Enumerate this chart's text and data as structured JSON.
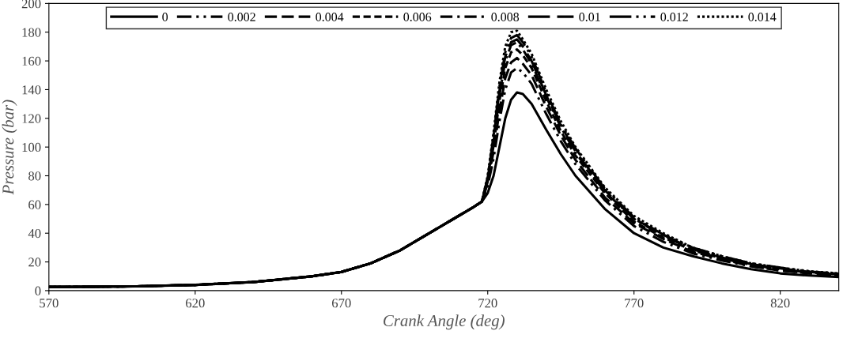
{
  "chart_data": {
    "type": "line",
    "xlabel": "Crank Angle (deg)",
    "ylabel": "Pressure (bar)",
    "x": [
      570,
      600,
      620,
      640,
      660,
      670,
      680,
      690,
      700,
      710,
      715,
      718,
      720,
      722,
      724,
      726,
      728,
      730,
      732,
      735,
      740,
      745,
      750,
      760,
      770,
      780,
      790,
      800,
      810,
      820,
      830,
      840
    ],
    "xlim": [
      570,
      840
    ],
    "xticks": [
      570,
      620,
      670,
      720,
      770,
      820
    ],
    "ylim": [
      0,
      200
    ],
    "yticks": [
      0,
      20,
      40,
      60,
      80,
      100,
      120,
      140,
      160,
      180,
      200
    ],
    "grid": false,
    "legend": "top",
    "marker": "none",
    "series": [
      {
        "name": "0",
        "color": "#000000",
        "line_style": "solid",
        "values": [
          2.5,
          3,
          4,
          6,
          10,
          13,
          19,
          28,
          40,
          52,
          58,
          62,
          68,
          80,
          100,
          120,
          133,
          138,
          137,
          130,
          112,
          95,
          80,
          57,
          40,
          30,
          24,
          19,
          15,
          12,
          10.5,
          9.5
        ]
      },
      {
        "name": "0.002",
        "color": "#000000",
        "line_style": "dashdotdot",
        "values": [
          2.5,
          3,
          4,
          6,
          10,
          13,
          19,
          28,
          40,
          52,
          58,
          62,
          73,
          92,
          118,
          140,
          152,
          155,
          152,
          144,
          123,
          104,
          88,
          63,
          45,
          34,
          26,
          21,
          17,
          14,
          12,
          10.5
        ]
      },
      {
        "name": "0.004",
        "color": "#000000",
        "line_style": "dashed",
        "values": [
          2.5,
          3,
          4,
          6,
          10,
          13,
          19,
          28,
          40,
          52,
          58,
          62,
          75,
          97,
          125,
          148,
          159,
          162,
          158,
          150,
          128,
          108,
          91,
          65,
          47,
          36,
          27,
          22,
          17,
          14,
          12,
          11
        ]
      },
      {
        "name": "0.006",
        "color": "#000000",
        "line_style": "shortdash",
        "values": [
          2.5,
          3,
          4,
          6,
          10,
          13,
          19,
          28,
          40,
          52,
          58,
          62,
          76,
          101,
          132,
          155,
          166,
          168,
          164,
          155,
          132,
          111,
          94,
          68,
          48,
          37,
          28,
          22.5,
          18,
          15,
          12.6,
          11.3
        ]
      },
      {
        "name": "0.008",
        "color": "#000000",
        "line_style": "dashdot",
        "values": [
          2.5,
          3,
          4,
          6,
          10,
          13,
          19,
          28,
          40,
          52,
          58,
          62,
          78,
          104,
          136,
          160,
          171,
          173,
          168,
          158,
          135,
          114,
          96,
          69,
          50,
          38,
          29,
          23,
          18,
          15,
          13,
          11.5
        ]
      },
      {
        "name": "0.01",
        "color": "#000000",
        "line_style": "longdash",
        "values": [
          2.5,
          3,
          4,
          6,
          10,
          13,
          19,
          28,
          40,
          52,
          58,
          62,
          78,
          106,
          139,
          163,
          173,
          175,
          170,
          160,
          136,
          115,
          97,
          70,
          50,
          39,
          29,
          23,
          18.5,
          15.5,
          13,
          11.7
        ]
      },
      {
        "name": "0.012",
        "color": "#000000",
        "line_style": "longdashdotdot",
        "values": [
          2.5,
          3,
          4,
          6,
          10,
          13,
          19,
          28,
          40,
          52,
          58,
          62,
          79,
          108,
          142,
          166,
          176,
          178,
          173,
          163,
          138,
          116,
          99,
          71,
          51,
          39,
          30,
          24,
          19,
          16,
          13.3,
          11.8
        ]
      },
      {
        "name": "0.014",
        "color": "#000000",
        "line_style": "dotted",
        "values": [
          2.5,
          3,
          4,
          6,
          10,
          13,
          19,
          28,
          40,
          52,
          58,
          62,
          80,
          110,
          145,
          170,
          180,
          181,
          175,
          165,
          140,
          118,
          100,
          72,
          52,
          40,
          30,
          24,
          19,
          16,
          13.5,
          12
        ]
      }
    ]
  }
}
